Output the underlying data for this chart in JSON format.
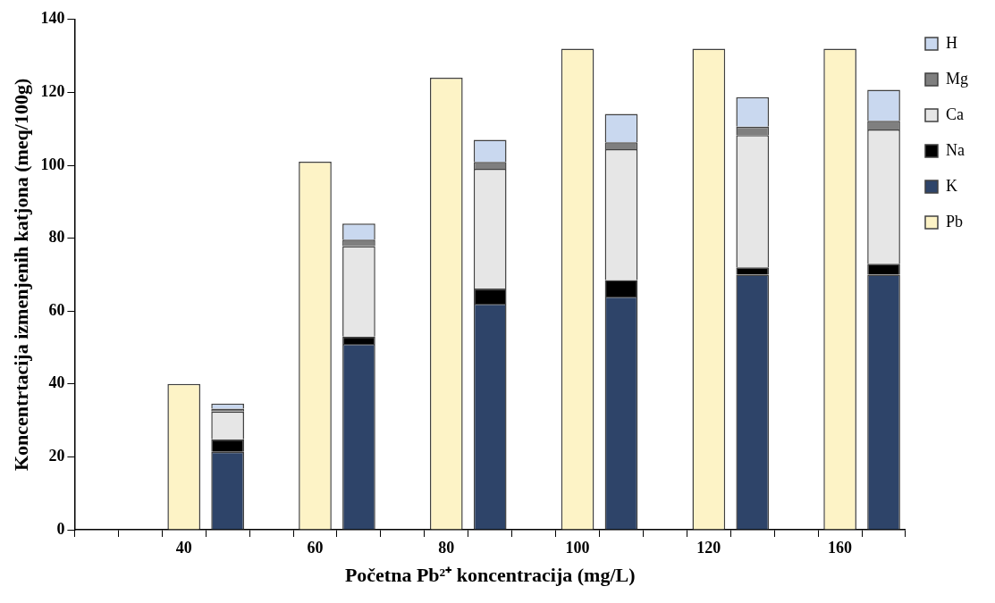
{
  "chart_data": {
    "type": "bar",
    "xlabel": "Početna Pb²⁺ koncentracija (mg/L)",
    "ylabel": "Koncentrtacija izmenjenih katjona (meq/100g)",
    "categories": [
      null,
      null,
      "40",
      null,
      null,
      "60",
      null,
      null,
      "80",
      null,
      null,
      "100",
      null,
      null,
      "120",
      null,
      null,
      "160",
      null
    ],
    "stacked": true,
    "ylim": [
      0,
      140
    ],
    "yticks": [
      0,
      20,
      40,
      60,
      80,
      100,
      120,
      140
    ],
    "grid": false,
    "legend": "right",
    "series": [
      {
        "name": "Pb",
        "color": "#fdf3c6",
        "values": [
          null,
          null,
          40,
          null,
          null,
          101,
          null,
          null,
          124,
          null,
          null,
          132,
          null,
          null,
          132,
          null,
          null,
          132,
          null
        ]
      },
      {
        "name": "K",
        "color": "#2e4469",
        "values": [
          null,
          null,
          null,
          21.4,
          null,
          null,
          51,
          null,
          null,
          62,
          null,
          null,
          64,
          null,
          null,
          70,
          null,
          null,
          70
        ]
      },
      {
        "name": "Na",
        "color": "#000000",
        "values": [
          null,
          null,
          null,
          3.4,
          null,
          null,
          2,
          null,
          null,
          4.2,
          null,
          null,
          4.5,
          null,
          null,
          2,
          null,
          null,
          3
        ]
      },
      {
        "name": "Ca",
        "color": "#e6e6e6",
        "values": [
          null,
          null,
          null,
          7.6,
          null,
          null,
          24.8,
          null,
          null,
          32.8,
          null,
          null,
          35.9,
          null,
          null,
          36.3,
          null,
          null,
          36.8
        ]
      },
      {
        "name": "Mg",
        "color": "#7f7f7f",
        "values": [
          null,
          null,
          null,
          0.8,
          null,
          null,
          1.8,
          null,
          null,
          1.9,
          null,
          null,
          1.9,
          null,
          null,
          2.3,
          null,
          null,
          2.4
        ]
      },
      {
        "name": "H",
        "color": "#c9d8ef",
        "values": [
          null,
          null,
          null,
          1.4,
          null,
          null,
          4.4,
          null,
          null,
          6.1,
          null,
          null,
          7.8,
          null,
          null,
          8.1,
          null,
          null,
          8.5
        ]
      }
    ]
  }
}
